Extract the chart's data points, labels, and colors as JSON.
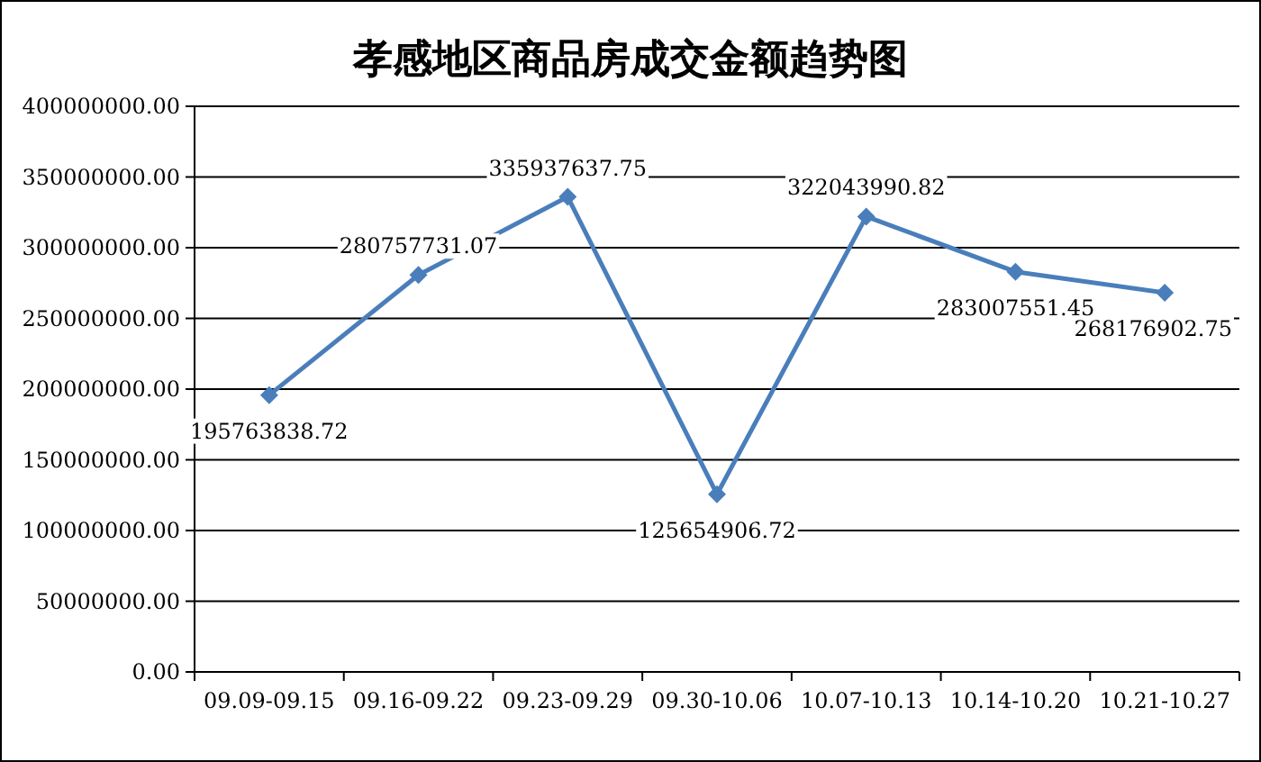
{
  "chart_data": {
    "type": "line",
    "title": "孝感地区商品房成交金额趋势图",
    "categories": [
      "09.09-09.15",
      "09.16-09.22",
      "09.23-09.29",
      "09.30-10.06",
      "10.07-10.13",
      "10.14-10.20",
      "10.21-10.27"
    ],
    "series": [
      {
        "color": "#4a7ebb",
        "values": [
          195763838.72,
          280757731.07,
          335937637.75,
          125654906.72,
          322043990.82,
          283007551.45,
          268176902.75
        ]
      }
    ],
    "ylim": [
      0,
      400000000
    ],
    "yticks": [
      {
        "value": 0,
        "label": "0.00"
      },
      {
        "value": 50000000,
        "label": "50000000.00"
      },
      {
        "value": 100000000,
        "label": "100000000.00"
      },
      {
        "value": 150000000,
        "label": "150000000.00"
      },
      {
        "value": 200000000,
        "label": "200000000.00"
      },
      {
        "value": 250000000,
        "label": "250000000.00"
      },
      {
        "value": 300000000,
        "label": "300000000.00"
      },
      {
        "value": 350000000,
        "label": "350000000.00"
      },
      {
        "value": 400000000,
        "label": "400000000.00"
      }
    ],
    "grid": "y",
    "marker": "diamond",
    "line_style": "solid",
    "data_labels": true
  }
}
